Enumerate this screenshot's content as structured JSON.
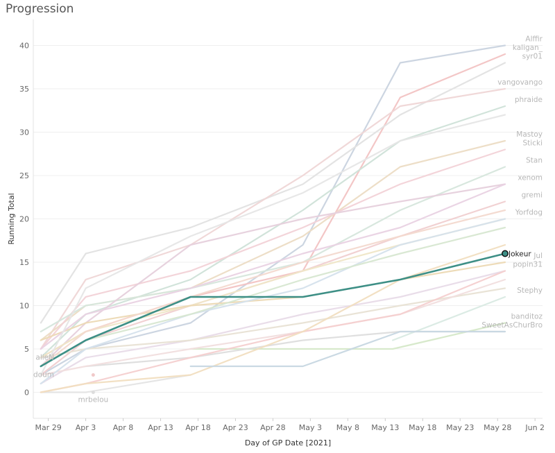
{
  "header": {
    "title": "Progression"
  },
  "chart_data": {
    "type": "line",
    "title": "Progression",
    "xlabel": "Day of GP Date [2021]",
    "ylabel": "Running Total",
    "x_ticks": [
      "Mar 29",
      "Apr 3",
      "Apr 8",
      "Apr 13",
      "Apr 18",
      "Apr 23",
      "Apr 28",
      "May 3",
      "May 8",
      "May 13",
      "May 18",
      "May 23",
      "May 28",
      "Jun 2"
    ],
    "y_ticks": [
      0,
      5,
      10,
      15,
      20,
      25,
      30,
      35,
      40
    ],
    "xlim": [
      "2021-03-27",
      "2021-06-03"
    ],
    "ylim": [
      -3,
      43
    ],
    "grid": true,
    "highlight_color": "#3d8f86",
    "highlight_series": "Jokeur",
    "series": [
      {
        "name": "Jokeur",
        "color": "#3d8f86",
        "highlighted": true,
        "x": [
          "2021-03-28",
          "2021-04-03",
          "2021-04-17",
          "2021-05-02",
          "2021-05-15",
          "2021-05-29"
        ],
        "values": [
          3,
          6,
          11,
          11,
          13,
          16
        ]
      },
      {
        "name": "Alffir",
        "color": "#c9d3df",
        "x": [
          "2021-03-28",
          "2021-04-03",
          "2021-04-17",
          "2021-05-02",
          "2021-05-15",
          "2021-05-29"
        ],
        "values": [
          2,
          5,
          8,
          17,
          38,
          40
        ]
      },
      {
        "name": "kaligan_",
        "color": "#f2c3c3",
        "x": [
          "2021-03-28",
          "2021-04-03",
          "2021-04-17",
          "2021-05-02",
          "2021-05-15",
          "2021-05-29"
        ],
        "values": [
          4,
          7,
          11,
          14,
          34,
          39
        ]
      },
      {
        "name": "syr01",
        "color": "#e2e2e2",
        "x": [
          "2021-03-28",
          "2021-04-03",
          "2021-04-17",
          "2021-05-02",
          "2021-05-15",
          "2021-05-29"
        ],
        "values": [
          8,
          16,
          19,
          24,
          32,
          38
        ]
      },
      {
        "name": "vangovango",
        "color": "#efd6d6",
        "x": [
          "2021-03-28",
          "2021-04-03",
          "2021-04-17",
          "2021-05-02",
          "2021-05-15",
          "2021-05-29"
        ],
        "values": [
          5,
          13,
          17,
          25,
          33,
          35
        ]
      },
      {
        "name": "phraide",
        "color": "#cfe1d8",
        "x": [
          "2021-03-28",
          "2021-04-03",
          "2021-04-17",
          "2021-05-02",
          "2021-05-15",
          "2021-05-29"
        ],
        "values": [
          4,
          9,
          13,
          21,
          29,
          33
        ]
      },
      {
        "name": "Mastoy",
        "color": "#ecdcc4",
        "x": [
          "2021-03-28",
          "2021-04-03",
          "2021-04-17",
          "2021-05-02",
          "2021-05-15",
          "2021-05-29"
        ],
        "values": [
          6,
          10,
          12,
          18,
          26,
          29
        ]
      },
      {
        "name": "Sticki",
        "color": "#f2d2d7",
        "x": [
          "2021-03-28",
          "2021-04-03",
          "2021-04-17",
          "2021-05-02",
          "2021-05-15",
          "2021-05-29"
        ],
        "values": [
          5,
          11,
          14,
          19,
          24,
          28
        ]
      },
      {
        "name": "Stan",
        "color": "#d6e6dc",
        "x": [
          "2021-03-28",
          "2021-04-03",
          "2021-04-17",
          "2021-05-02",
          "2021-05-15",
          "2021-05-29"
        ],
        "values": [
          7,
          10,
          12,
          15,
          21,
          26
        ]
      },
      {
        "name": "xenom",
        "color": "#e6d0dc",
        "x": [
          "2021-03-28",
          "2021-04-03",
          "2021-04-17",
          "2021-05-02",
          "2021-05-15",
          "2021-05-29"
        ],
        "values": [
          3,
          8,
          17,
          20,
          22,
          24
        ]
      },
      {
        "name": "gremi",
        "color": "#f0cfd0",
        "x": [
          "2021-03-28",
          "2021-04-03",
          "2021-04-17",
          "2021-05-02",
          "2021-05-15",
          "2021-05-29"
        ],
        "values": [
          2,
          6,
          10,
          14,
          18,
          22
        ]
      },
      {
        "name": "Yorfdog",
        "color": "#efe6c7",
        "x": [
          "2021-03-28",
          "2021-04-03",
          "2021-04-17",
          "2021-05-02",
          "2021-05-15",
          "2021-05-29"
        ],
        "values": [
          4,
          7,
          10,
          14,
          17,
          20
        ]
      },
      {
        "name": "Jul",
        "color": "#ecd9b4",
        "x": [
          "2021-03-28",
          "2021-04-03",
          "2021-04-17",
          "2021-05-02",
          "2021-05-15",
          "2021-05-29"
        ],
        "values": [
          6,
          8,
          10,
          11,
          13,
          15
        ]
      },
      {
        "name": "popin31",
        "color": "#e8dbe8",
        "x": [
          "2021-03-28",
          "2021-04-03",
          "2021-04-17",
          "2021-05-02",
          "2021-05-15",
          "2021-05-29"
        ],
        "values": [
          1,
          4,
          6,
          9,
          11,
          14
        ]
      },
      {
        "name": "Stephy",
        "color": "#d9eae3",
        "x": [
          "2021-05-14",
          "2021-05-29"
        ],
        "values": [
          6,
          11
        ]
      },
      {
        "name": "banditoz",
        "color": "#d5e8c8",
        "x": [
          "2021-04-17",
          "2021-05-02",
          "2021-05-14",
          "2021-05-29"
        ],
        "values": [
          5,
          5,
          5,
          8
        ]
      },
      {
        "name": "SweetAsChurBro",
        "color": "#dddddd",
        "x": [
          "2021-04-03",
          "2021-04-17",
          "2021-05-02",
          "2021-05-15",
          "2021-05-29"
        ],
        "values": [
          3,
          4,
          6,
          7,
          7
        ]
      },
      {
        "name": "alieN",
        "color": "#e8e1d4",
        "x": [
          "2021-03-28",
          "2021-04-03",
          "2021-04-17",
          "2021-05-02",
          "2021-05-15",
          "2021-05-29"
        ],
        "values": [
          4,
          5,
          6,
          8,
          10,
          12
        ]
      },
      {
        "name": "doum",
        "color": "#f1dede",
        "x": [
          "2021-03-28",
          "2021-04-03",
          "2021-04-17",
          "2021-05-02",
          "2021-05-15",
          "2021-05-29"
        ],
        "values": [
          2,
          3,
          5,
          7,
          9,
          13
        ]
      },
      {
        "name": "mrbelou",
        "color": "#e4e4e4",
        "x": [
          "2021-03-28",
          "2021-04-03",
          "2021-04-17"
        ],
        "values": [
          0,
          0,
          2
        ]
      },
      {
        "name": "",
        "color": "#f4cfcf",
        "x": [
          "2021-03-28",
          "2021-04-03",
          "2021-04-17",
          "2021-05-02",
          "2021-05-15",
          "2021-05-29"
        ],
        "values": [
          0,
          1,
          4,
          7,
          9,
          14
        ]
      },
      {
        "name": "",
        "color": "#f1dec0",
        "x": [
          "2021-03-28",
          "2021-04-03",
          "2021-04-17",
          "2021-05-02",
          "2021-05-15",
          "2021-05-29"
        ],
        "values": [
          0,
          1,
          2,
          7,
          13,
          17
        ]
      },
      {
        "name": "",
        "color": "#d5e2ec",
        "x": [
          "2021-03-28",
          "2021-04-03",
          "2021-04-17",
          "2021-05-02",
          "2021-05-15",
          "2021-05-29"
        ],
        "values": [
          1,
          5,
          9,
          12,
          17,
          20
        ]
      },
      {
        "name": "",
        "color": "#e9d2e3",
        "x": [
          "2021-03-28",
          "2021-04-03",
          "2021-04-17",
          "2021-05-02",
          "2021-05-15",
          "2021-05-29"
        ],
        "values": [
          5,
          9,
          12,
          16,
          19,
          24
        ]
      },
      {
        "name": "",
        "color": "#d7e7d1",
        "x": [
          "2021-03-28",
          "2021-04-03",
          "2021-04-17",
          "2021-05-02",
          "2021-05-15",
          "2021-05-29"
        ],
        "values": [
          3,
          6,
          9,
          13,
          16,
          19
        ]
      },
      {
        "name": "",
        "color": "#e6e6e6",
        "x": [
          "2021-03-28",
          "2021-04-03",
          "2021-04-17",
          "2021-05-02",
          "2021-05-15",
          "2021-05-29"
        ],
        "values": [
          2,
          12,
          18,
          23,
          29,
          32
        ]
      },
      {
        "name": "",
        "color": "#c7d7e1",
        "x": [
          "2021-04-17",
          "2021-05-02",
          "2021-05-15",
          "2021-05-29"
        ],
        "values": [
          3,
          3,
          7,
          7
        ]
      },
      {
        "name": "",
        "color": "#f3d9cf",
        "x": [
          "2021-03-28",
          "2021-04-03",
          "2021-04-17",
          "2021-05-02",
          "2021-05-15",
          "2021-05-29"
        ],
        "values": [
          3,
          7,
          11,
          15,
          18,
          21
        ]
      }
    ]
  }
}
